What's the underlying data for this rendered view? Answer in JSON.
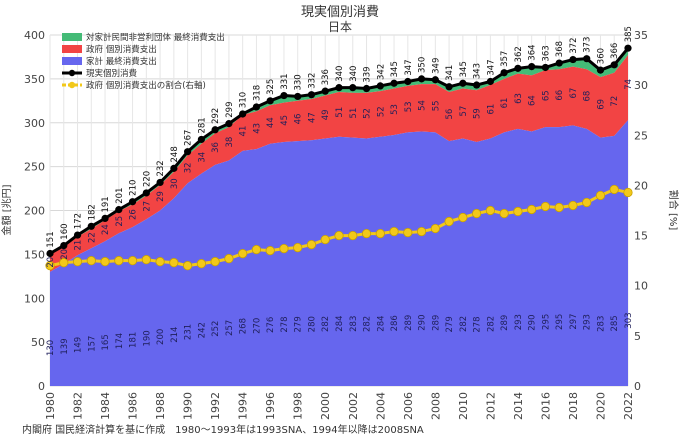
{
  "chart_data": {
    "type": "area",
    "title": "現実個別消費",
    "subtitle": "日本",
    "ylabel_left": "金額 [兆円]",
    "ylabel_right": "割合 [%]",
    "source_note": "内閣府 国民経済計算を基に作成　1980～1993年は1993SNA、1994年以降は2008SNA",
    "ylim_left": [
      0,
      400
    ],
    "yticks_left": [
      0,
      50,
      100,
      150,
      200,
      250,
      300,
      350,
      400
    ],
    "ylim_right": [
      0,
      35
    ],
    "yticks_right": [
      0,
      5,
      10,
      15,
      20,
      25,
      30,
      35
    ],
    "grid": true,
    "legend_position": "top-left",
    "x": [
      1980,
      1981,
      1982,
      1983,
      1984,
      1985,
      1986,
      1987,
      1988,
      1989,
      1990,
      1991,
      1992,
      1993,
      1994,
      1995,
      1996,
      1997,
      1998,
      1999,
      2000,
      2001,
      2002,
      2003,
      2004,
      2005,
      2006,
      2007,
      2008,
      2009,
      2010,
      2011,
      2012,
      2013,
      2014,
      2015,
      2016,
      2017,
      2018,
      2019,
      2020,
      2021,
      2022
    ],
    "xtick_labels": [
      "1980",
      "1982",
      "1984",
      "1986",
      "1988",
      "1990",
      "1992",
      "1994",
      "1996",
      "1998",
      "2000",
      "2002",
      "2004",
      "2006",
      "2008",
      "2010",
      "2012",
      "2014",
      "2016",
      "2018",
      "2020",
      "2022"
    ],
    "series": [
      {
        "name": "家計 最終消費支出",
        "color": "#6666ee",
        "values": [
          130,
          139,
          149,
          157,
          165,
          174,
          181,
          190,
          200,
          214,
          231,
          242,
          252,
          257,
          268,
          270,
          276,
          278,
          279,
          280,
          282,
          284,
          283,
          282,
          284,
          286,
          289,
          290,
          289,
          279,
          282,
          278,
          282,
          289,
          293,
          290,
          295,
          295,
          297,
          293,
          283,
          285,
          303
        ]
      },
      {
        "name": "政府 個別消費支出",
        "color": "#f24444",
        "values": [
          20,
          20,
          21,
          22,
          24,
          25,
          26,
          27,
          29,
          30,
          32,
          34,
          36,
          38,
          41,
          43,
          44,
          45,
          46,
          47,
          49,
          51,
          51,
          52,
          52,
          53,
          53,
          54,
          55,
          56,
          57,
          59,
          61,
          61,
          63,
          64,
          65,
          66,
          67,
          68,
          69,
          72,
          74
        ]
      },
      {
        "name": "対家計民間非営利団体 最終消費支出",
        "color": "#44bb77",
        "values": [
          1,
          1,
          2,
          3,
          3,
          2,
          2,
          3,
          3,
          4,
          4,
          5,
          4,
          4,
          1,
          5,
          5,
          8,
          6,
          5,
          5,
          5,
          5,
          4,
          6,
          8,
          5,
          5,
          5,
          6,
          6,
          6,
          4,
          7,
          6,
          8,
          5,
          7,
          9,
          12,
          8,
          9,
          8
        ]
      },
      {
        "name": "現実個別消費",
        "color": "#000000",
        "values": [
          151,
          160,
          172,
          182,
          191,
          201,
          210,
          220,
          232,
          248,
          267,
          281,
          292,
          299,
          310,
          318,
          325,
          331,
          330,
          332,
          336,
          340,
          340,
          339,
          342,
          345,
          347,
          350,
          349,
          341,
          345,
          343,
          347,
          357,
          362,
          364,
          363,
          368,
          372,
          373,
          360,
          366,
          385
        ]
      },
      {
        "name": "政府 個別消費支出の割合(右軸)",
        "color": "#f2c81a",
        "axis": "right",
        "values": [
          12.0,
          12.3,
          12.4,
          12.5,
          12.4,
          12.5,
          12.5,
          12.6,
          12.4,
          12.3,
          12.0,
          12.2,
          12.4,
          12.7,
          13.2,
          13.6,
          13.5,
          13.7,
          13.8,
          14.1,
          14.6,
          15.0,
          15.0,
          15.2,
          15.2,
          15.4,
          15.3,
          15.4,
          15.7,
          16.4,
          16.8,
          17.2,
          17.5,
          17.2,
          17.4,
          17.6,
          17.9,
          17.8,
          18.0,
          18.3,
          19.0,
          19.6,
          19.3
        ]
      }
    ]
  }
}
